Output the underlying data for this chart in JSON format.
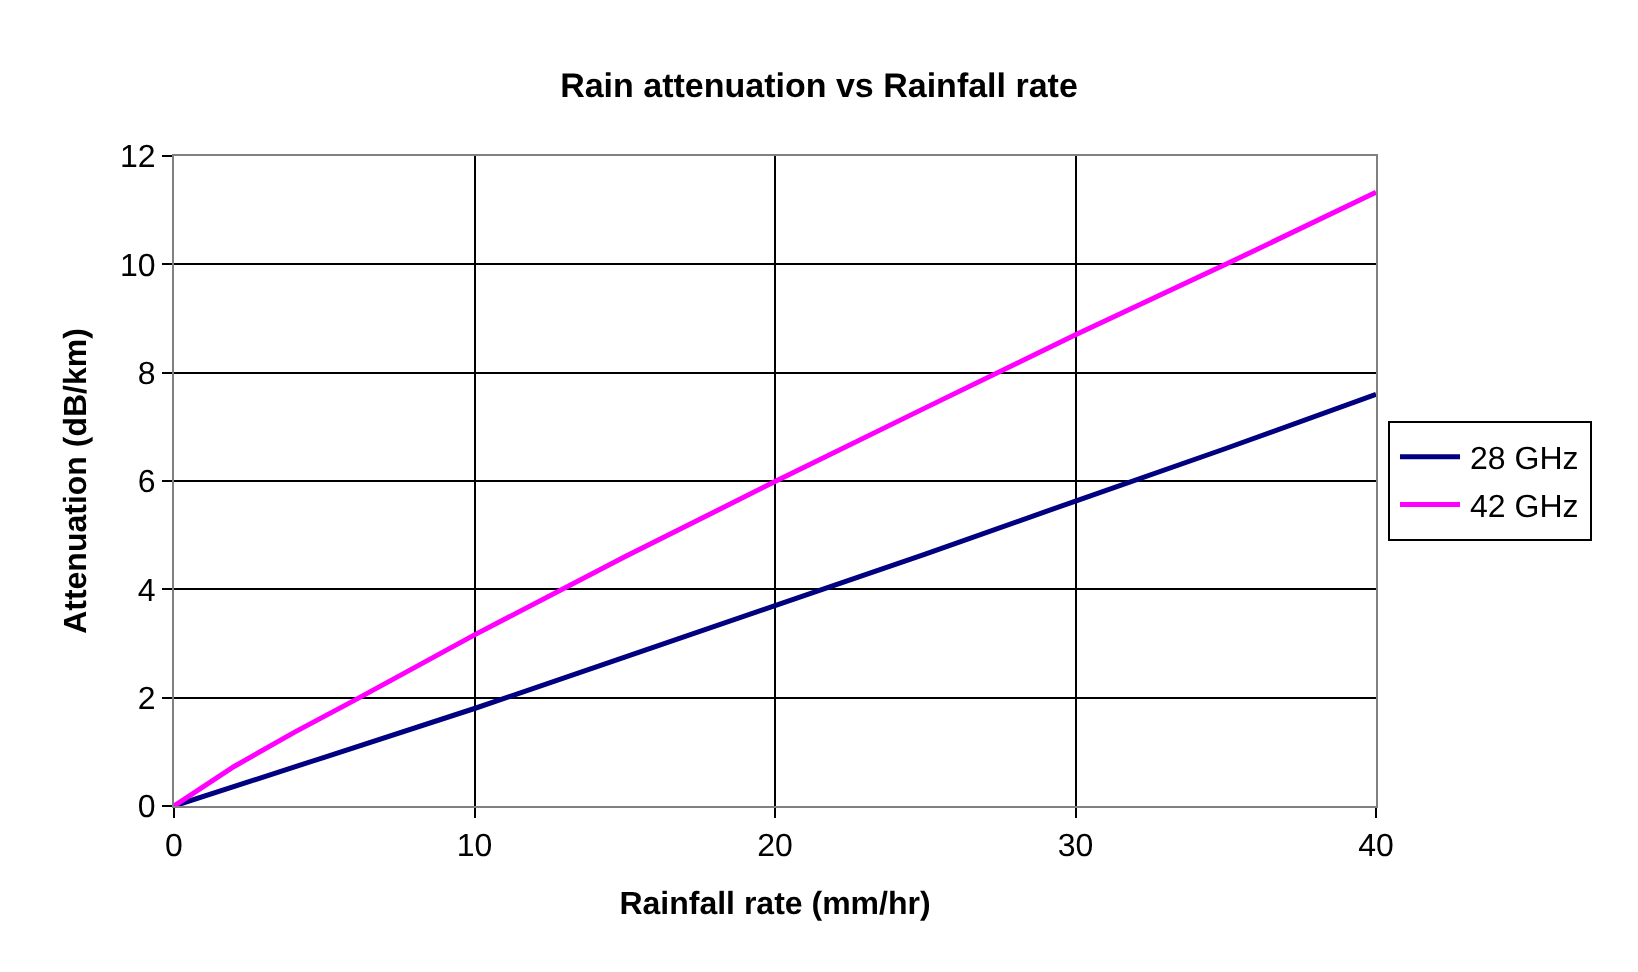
{
  "chart_data": {
    "type": "line",
    "title": "Rain attenuation vs Rainfall rate",
    "xlabel": "Rainfall rate (mm/hr)",
    "ylabel": "Attenuation (dB/km)",
    "xlim": [
      0,
      40
    ],
    "xticks": [
      0,
      10,
      20,
      30,
      40
    ],
    "ylim": [
      0,
      12
    ],
    "yticks": [
      0,
      2,
      4,
      6,
      8,
      10,
      12
    ],
    "grid": true,
    "legend": "right",
    "marker": "none",
    "line_style": "solid",
    "series": [
      {
        "name": "28 GHz",
        "color": "#000080",
        "x": [
          0,
          5,
          10,
          15,
          20,
          25,
          30,
          35,
          40
        ],
        "values": [
          0,
          0.9,
          1.8,
          2.75,
          3.7,
          4.65,
          5.63,
          6.6,
          7.6
        ]
      },
      {
        "name": "42 GHz",
        "color": "#ff00ff",
        "x": [
          0,
          2,
          4,
          6,
          10,
          15,
          20,
          25,
          30,
          35,
          40
        ],
        "values": [
          0,
          0.73,
          1.36,
          1.95,
          3.16,
          4.6,
          5.99,
          7.35,
          8.7,
          10.0,
          11.33
        ]
      }
    ]
  }
}
